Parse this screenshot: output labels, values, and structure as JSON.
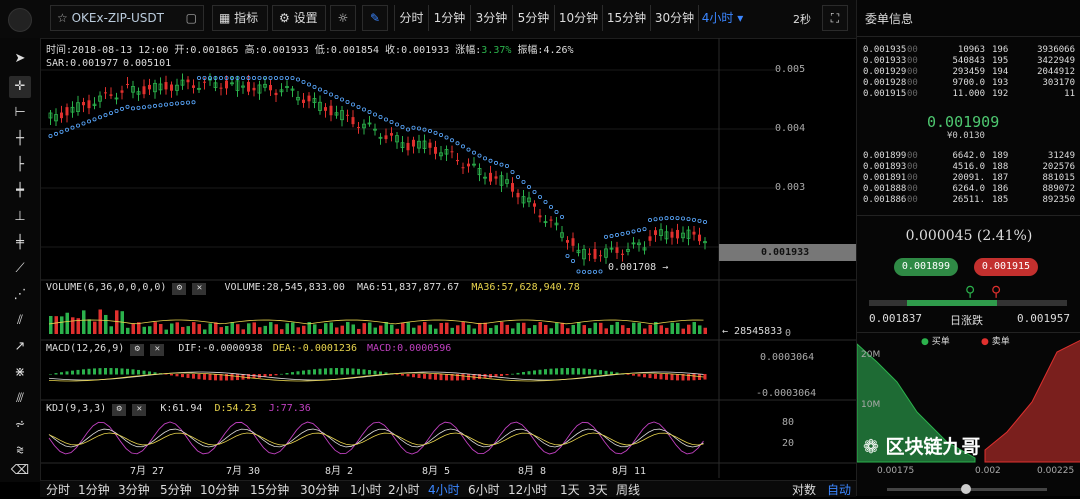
{
  "pair_label": "OKEx-ZIP-USDT",
  "toolbar": {
    "indicators_label": "指标",
    "settings_label": "设置",
    "refresh_label": "2秒"
  },
  "timeframes": [
    "分时",
    "1分钟",
    "3分钟",
    "5分钟",
    "10分钟",
    "15分钟",
    "30分钟",
    "4小时"
  ],
  "active_timeframe": "4小时",
  "ohlc_bar": {
    "time": "时间:2018-08-13 12:00",
    "open": "开:0.001865",
    "high": "高:0.001933",
    "low": "低:0.001854",
    "close": "收:0.001933",
    "change_label": "涨幅:",
    "change_value": "3.37%",
    "amplitude_label": "振幅:",
    "amplitude_value": "4.26%"
  },
  "sar_label": "SAR:0.001977",
  "sar_high": "0.005101",
  "price_axis": [
    "0.005",
    "0.004",
    "0.003"
  ],
  "current_price_tag": "0.001933",
  "low_marker": "0.001708",
  "volume": {
    "label": "VOLUME(6,36,0,0,0,0)",
    "value": "VOLUME:28,545,833.00",
    "ma6": "MA6:51,837,877.67",
    "ma36": "MA36:57,628,940.78",
    "last": "28545833",
    "axis_zero": "0"
  },
  "macd": {
    "label": "MACD(12,26,9)",
    "dif": "DIF:-0.0000938",
    "dea": "DEA:-0.0001236",
    "macd": "MACD:0.0000596",
    "axis_top": "0.0003064",
    "axis_bottom": "-0.0003064"
  },
  "kdj": {
    "label": "KDJ(9,3,3)",
    "k": "K:61.94",
    "d": "D:54.23",
    "j": "J:77.36",
    "axis_top": "80",
    "axis_bottom": "20"
  },
  "date_axis": [
    "7月 27",
    "7月 30",
    "8月 2",
    "8月 5",
    "8月 8",
    "8月 11"
  ],
  "bottom_bar": {
    "items": [
      "分时",
      "1分钟",
      "3分钟",
      "5分钟",
      "10分钟",
      "15分钟",
      "30分钟",
      "1小时",
      "2小时",
      "4小时",
      "6小时",
      "12小时",
      "1天",
      "3天",
      "周线"
    ],
    "active": "4小时",
    "log_label": "对数",
    "auto_label": "自动"
  },
  "orderbook": {
    "title": "委单信息",
    "asks": [
      [
        "0.001935",
        "00",
        "10963",
        "196",
        "3936066"
      ],
      [
        "0.001933",
        "00",
        "540843",
        "195",
        "3422949"
      ],
      [
        "0.001929",
        "00",
        "293459",
        "194",
        "2044912"
      ],
      [
        "0.001928",
        "00",
        "9700.0",
        "193",
        "303170"
      ],
      [
        "0.001915",
        "00",
        "11.000",
        "192",
        "11"
      ]
    ],
    "last_price": "0.001909",
    "last_cny": "¥0.0130",
    "bids": [
      [
        "0.001899",
        "00",
        "6642.0",
        "189",
        "31249"
      ],
      [
        "0.001893",
        "00",
        "4516.0",
        "188",
        "202576"
      ],
      [
        "0.001891",
        "00",
        "20091.",
        "187",
        "881015"
      ],
      [
        "0.001888",
        "00",
        "6264.0",
        "186",
        "889072"
      ],
      [
        "0.001886",
        "00",
        "26511.",
        "185",
        "892350"
      ]
    ],
    "change": "0.000045 (2.41%)",
    "buy_price": "0.001899",
    "sell_price": "0.001915",
    "range_low": "0.001837",
    "range_label": "日涨跌",
    "range_high": "0.001957",
    "legend_buy": "买单",
    "legend_sell": "卖单",
    "depth_axis_top": "20M",
    "depth_axis_mid": "10M",
    "depth_x": [
      "0.00175",
      "0.002",
      "0.00225"
    ],
    "watermark": "区块链九哥"
  },
  "colors": {
    "up": "#2bb24c",
    "down": "#e0302e",
    "blue": "#3b86ff",
    "bg": "#000000"
  }
}
